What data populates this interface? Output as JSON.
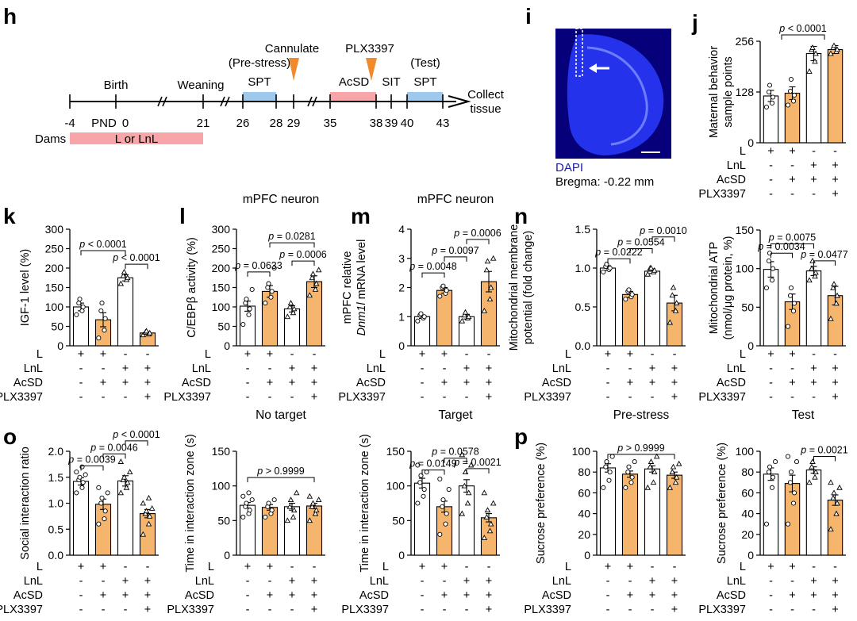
{
  "colors": {
    "white_bar": "#ffffff",
    "orange_bar": "#f6b56d",
    "timeline_pink": "#f7a5a8",
    "timeline_blue": "#9fc9ec",
    "marker": "#f08a2c",
    "dapi_bg": "#06007a",
    "dapi": "#2a3cff"
  },
  "row_labels": [
    "L",
    "LnL",
    "AcSD",
    "PLX3397"
  ],
  "groups": [
    {
      "L": "+",
      "LnL": "-",
      "AcSD": "-",
      "PLX3397": "-"
    },
    {
      "L": "+",
      "LnL": "-",
      "AcSD": "+",
      "PLX3397": "-"
    },
    {
      "L": "-",
      "LnL": "+",
      "AcSD": "+",
      "PLX3397": "-"
    },
    {
      "L": "-",
      "LnL": "+",
      "AcSD": "+",
      "PLX3397": "+"
    }
  ],
  "panel_h": {
    "letter": "h",
    "ticks": [
      "-4",
      "0",
      "21",
      "26",
      "28",
      "29",
      "35",
      "38",
      "39",
      "40",
      "43"
    ],
    "labels": {
      "birth": "Birth",
      "pnd": "PND",
      "weaning": "Weaning",
      "prestress": "(Pre-stress)",
      "spt1": "SPT",
      "cannulate": "Cannulate",
      "plx": "PLX3397",
      "acsd": "AcSD",
      "sit": "SIT",
      "test": "(Test)",
      "spt2": "SPT",
      "collect1": "Collect",
      "collect2": "tissue",
      "dams": "Dams",
      "l_or_lnl": "L or LnL"
    }
  },
  "panel_i": {
    "letter": "i",
    "stain": "DAPI",
    "bregma": "Bregma: -0.22 mm"
  },
  "chart_data": [
    {
      "id": "j1",
      "letter": "j",
      "type": "bar",
      "ylabel": [
        "Maternal behavior",
        "sample points"
      ],
      "yticks": [
        0,
        128,
        256
      ],
      "ylim": [
        0,
        256
      ],
      "values": [
        118,
        125,
        225,
        235
      ],
      "errors": [
        14,
        16,
        18,
        10
      ],
      "points": [
        [
          90,
          100,
          115,
          128,
          145
        ],
        [
          95,
          105,
          120,
          130,
          160
        ],
        [
          180,
          205,
          225,
          235,
          240
        ],
        [
          225,
          230,
          235,
          240,
          245
        ]
      ],
      "comparisons": [
        {
          "from": 0.5,
          "to": 2.5,
          "y": 272,
          "label": "p < 0.0001"
        }
      ],
      "rows": [
        "L",
        "LnL",
        "AcSD",
        "PLX3397"
      ],
      "show_row_labels": true
    },
    {
      "id": "j2",
      "type": "bar",
      "ylabel": [
        "Mitochondrial ATP",
        "(nmol/μg protein, %)"
      ],
      "yticks": [
        0,
        50,
        100,
        150
      ],
      "ylim": [
        0,
        150
      ],
      "values": [
        99,
        57,
        97,
        65
      ],
      "errors": [
        10,
        10,
        6,
        12
      ],
      "points": [
        [
          75,
          85,
          100,
          110,
          120
        ],
        [
          25,
          45,
          55,
          65,
          75
        ],
        [
          85,
          90,
          95,
          100,
          110
        ],
        [
          35,
          55,
          65,
          75,
          80
        ]
      ],
      "comparisons": [
        {
          "from": 0,
          "to": 1,
          "y": 120,
          "label": "p = 0.0034"
        },
        {
          "from": 0,
          "to": 2,
          "y": 132,
          "label": "p = 0.0075"
        },
        {
          "from": 2,
          "to": 3,
          "y": 110,
          "label": "p = 0.0477"
        }
      ],
      "rows": [
        "L",
        "LnL",
        "AcSD",
        "PLX3397"
      ],
      "show_row_labels": true
    },
    {
      "id": "k",
      "letter": "k",
      "type": "bar",
      "ylabel": [
        "IGF-1 level (%)"
      ],
      "yticks": [
        0,
        50,
        100,
        150,
        200,
        250,
        300
      ],
      "ylim": [
        0,
        300
      ],
      "values": [
        100,
        67,
        175,
        33
      ],
      "errors": [
        10,
        18,
        8,
        3
      ],
      "points": [
        [
          80,
          90,
          100,
          110,
          120
        ],
        [
          20,
          40,
          70,
          90,
          110
        ],
        [
          160,
          170,
          175,
          180,
          190
        ],
        [
          28,
          30,
          33,
          35,
          38
        ]
      ],
      "comparisons": [
        {
          "from": 0,
          "to": 2,
          "y": 245,
          "label": "p < 0.0001"
        },
        {
          "from": 2,
          "to": 3,
          "y": 210,
          "label": "p < 0.0001"
        }
      ],
      "rows": [
        "L",
        "LnL",
        "AcSD",
        "PLX3397"
      ],
      "show_row_labels": true
    },
    {
      "id": "l",
      "letter": "l",
      "type": "bar",
      "title": "mPFC neuron",
      "ylabel": [
        "C/EBPβ activity (%)"
      ],
      "yticks": [
        0,
        50,
        100,
        150,
        200,
        250,
        300
      ],
      "ylim": [
        0,
        300
      ],
      "values": [
        102,
        140,
        95,
        165
      ],
      "errors": [
        13,
        15,
        8,
        15
      ],
      "points": [
        [
          55,
          80,
          95,
          110,
          120,
          145
        ],
        [
          110,
          125,
          140,
          150,
          160,
          200
        ],
        [
          75,
          85,
          95,
          100,
          110
        ],
        [
          130,
          145,
          160,
          175,
          185,
          195
        ]
      ],
      "comparisons": [
        {
          "from": 0,
          "to": 1,
          "y": 190,
          "label": "p = 0.0633"
        },
        {
          "from": 1,
          "to": 3,
          "y": 265,
          "label": "p = 0.0281"
        },
        {
          "from": 2,
          "to": 3,
          "y": 218,
          "label": "p = 0.0006"
        }
      ],
      "rows": [
        "L",
        "LnL",
        "AcSD",
        "PLX3397"
      ],
      "show_row_labels": true
    },
    {
      "id": "m",
      "letter": "m",
      "type": "bar",
      "title": "mPFC neuron",
      "ylabel": [
        "mPFC relative",
        "Dnm1l mRNA level"
      ],
      "yticks": [
        0,
        1,
        2,
        3,
        4
      ],
      "ylim": [
        0,
        4
      ],
      "values": [
        1.0,
        1.9,
        1.0,
        2.2
      ],
      "errors": [
        0.06,
        0.1,
        0.08,
        0.35
      ],
      "points": [
        [
          0.85,
          0.95,
          1.0,
          1.05,
          1.1
        ],
        [
          1.7,
          1.8,
          1.9,
          2.0,
          2.05
        ],
        [
          0.85,
          0.95,
          1.0,
          1.05,
          1.15
        ],
        [
          1.2,
          1.6,
          2.0,
          2.6,
          2.9,
          3.0
        ]
      ],
      "comparisons": [
        {
          "from": 0,
          "to": 1,
          "y": 2.5,
          "label": "p = 0.0048"
        },
        {
          "from": 1,
          "to": 2,
          "y": 3.05,
          "label": "p = 0.0097"
        },
        {
          "from": 2,
          "to": 3,
          "y": 3.65,
          "label": "p = 0.0006"
        }
      ],
      "rows": [
        "L",
        "LnL",
        "AcSD",
        "PLX3397"
      ],
      "show_row_labels": true
    },
    {
      "id": "n",
      "letter": "n",
      "type": "bar",
      "ylabel": [
        "Mitochondrial membrane",
        "potential (fold change)"
      ],
      "yticks": [
        0.0,
        0.5,
        1.0,
        1.5
      ],
      "ylim": [
        0,
        1.5
      ],
      "values": [
        1.0,
        0.66,
        0.96,
        0.55
      ],
      "errors": [
        0.03,
        0.04,
        0.03,
        0.1
      ],
      "points": [
        [
          0.95,
          0.98,
          1.0,
          1.02,
          1.05
        ],
        [
          0.6,
          0.63,
          0.66,
          0.7,
          0.72
        ],
        [
          0.92,
          0.95,
          0.97,
          1.0,
          1.0
        ],
        [
          0.3,
          0.45,
          0.55,
          0.65,
          0.75
        ]
      ],
      "comparisons": [
        {
          "from": 0,
          "to": 1,
          "y": 1.12,
          "label": "p = 0.0222"
        },
        {
          "from": 1,
          "to": 2,
          "y": 1.25,
          "label": "p = 0.0554"
        },
        {
          "from": 2,
          "to": 3,
          "y": 1.4,
          "label": "p = 0.0010"
        }
      ],
      "rows": [
        "L",
        "LnL",
        "AcSD",
        "PLX3397"
      ],
      "show_row_labels": true
    },
    {
      "id": "o1",
      "letter": "o",
      "type": "bar",
      "ylabel": [
        "Social interaction ratio"
      ],
      "yticks": [
        0.0,
        0.5,
        1.0,
        1.5,
        2.0
      ],
      "ylim": [
        0,
        2.0
      ],
      "values": [
        1.42,
        0.98,
        1.43,
        0.8
      ],
      "errors": [
        0.07,
        0.1,
        0.1,
        0.08
      ],
      "points": [
        [
          1.2,
          1.3,
          1.4,
          1.45,
          1.5,
          1.55,
          1.6,
          1.7
        ],
        [
          0.6,
          0.7,
          0.85,
          1.0,
          1.1,
          1.2,
          1.3
        ],
        [
          1.2,
          1.3,
          1.4,
          1.45,
          1.5,
          1.6,
          1.8
        ],
        [
          0.4,
          0.6,
          0.75,
          0.8,
          0.85,
          0.9,
          1.0,
          1.1
        ]
      ],
      "comparisons": [
        {
          "from": 0,
          "to": 1,
          "y": 1.72,
          "label": "p = 0.0039"
        },
        {
          "from": 1,
          "to": 2,
          "y": 1.95,
          "label": "p = 0.0046"
        },
        {
          "from": 2,
          "to": 3,
          "y": 2.2,
          "label": "p < 0.0001"
        }
      ],
      "rows": [
        "L",
        "LnL",
        "AcSD",
        "PLX3397"
      ],
      "show_row_labels": true
    },
    {
      "id": "o2",
      "type": "bar",
      "title": "No target",
      "ylabel": [
        "Time in interaction zone (s)"
      ],
      "yticks": [
        0,
        50,
        100,
        150
      ],
      "ylim": [
        0,
        150
      ],
      "values": [
        72,
        69,
        70,
        71
      ],
      "errors": [
        4,
        4,
        5,
        4
      ],
      "points": [
        [
          55,
          60,
          65,
          70,
          75,
          80,
          85,
          90
        ],
        [
          55,
          60,
          65,
          70,
          75,
          80
        ],
        [
          50,
          55,
          65,
          70,
          80,
          90
        ],
        [
          50,
          60,
          65,
          70,
          75,
          80,
          85
        ]
      ],
      "comparisons": [
        {
          "from": 0,
          "to": 3,
          "y": 112,
          "label": "p > 0.9999"
        }
      ],
      "rows": [
        "L",
        "LnL",
        "AcSD",
        "PLX3397"
      ],
      "show_row_labels": true
    },
    {
      "id": "o3",
      "type": "bar",
      "title": "Target",
      "ylabel": [
        "Time in interaction zone (s)"
      ],
      "yticks": [
        0,
        50,
        100,
        150
      ],
      "ylim": [
        0,
        150
      ],
      "values": [
        104,
        70,
        100,
        54
      ],
      "errors": [
        7,
        8,
        9,
        6
      ],
      "points": [
        [
          75,
          85,
          95,
          105,
          115,
          120,
          130
        ],
        [
          30,
          45,
          60,
          70,
          80,
          95,
          110
        ],
        [
          60,
          75,
          90,
          100,
          120,
          130,
          145
        ],
        [
          25,
          35,
          45,
          55,
          65,
          75,
          90
        ]
      ],
      "comparisons": [
        {
          "from": 0,
          "to": 1,
          "y": 123,
          "label": "p = 0.0149"
        },
        {
          "from": 1,
          "to": 2,
          "y": 140,
          "label": "p = 0.0578"
        },
        {
          "from": 2,
          "to": 3,
          "y": 125,
          "label": "p = 0.0021"
        }
      ],
      "rows": [
        "L",
        "LnL",
        "AcSD",
        "PLX3397"
      ],
      "show_row_labels": true
    },
    {
      "id": "p1",
      "letter": "p",
      "type": "bar",
      "title": "Pre-stress",
      "ylabel": [
        "Sucrose preference (%)"
      ],
      "yticks": [
        0,
        20,
        40,
        60,
        80,
        100
      ],
      "ylim": [
        0,
        100
      ],
      "values": [
        84,
        78,
        83,
        77
      ],
      "errors": [
        4,
        3,
        3,
        3
      ],
      "points": [
        [
          65,
          72,
          80,
          85,
          90,
          95
        ],
        [
          65,
          70,
          75,
          80,
          85,
          90
        ],
        [
          65,
          70,
          80,
          85,
          90,
          95
        ],
        [
          65,
          70,
          75,
          80,
          85,
          88
        ]
      ],
      "comparisons": [
        {
          "from": 0,
          "to": 3,
          "y": 97,
          "label": "p > 0.9999"
        }
      ],
      "rows": [
        "L",
        "LnL",
        "AcSD",
        "PLX3397"
      ],
      "show_row_labels": true
    },
    {
      "id": "p2",
      "type": "bar",
      "title": "Test",
      "ylabel": [
        "Sucrose preference (%)"
      ],
      "yticks": [
        0,
        20,
        40,
        60,
        80,
        100
      ],
      "ylim": [
        0,
        100
      ],
      "values": [
        78,
        69,
        82,
        53
      ],
      "errors": [
        6,
        8,
        3,
        5
      ],
      "points": [
        [
          30,
          65,
          75,
          80,
          85,
          90
        ],
        [
          30,
          50,
          60,
          70,
          80,
          90,
          95
        ],
        [
          70,
          75,
          80,
          85,
          90
        ],
        [
          25,
          40,
          50,
          55,
          60,
          65,
          70
        ]
      ],
      "comparisons": [
        {
          "from": 2,
          "to": 3,
          "y": 95,
          "label": "p = 0.0021"
        }
      ],
      "rows": [
        "L",
        "LnL",
        "AcSD",
        "PLX3397"
      ],
      "show_row_labels": true
    }
  ]
}
